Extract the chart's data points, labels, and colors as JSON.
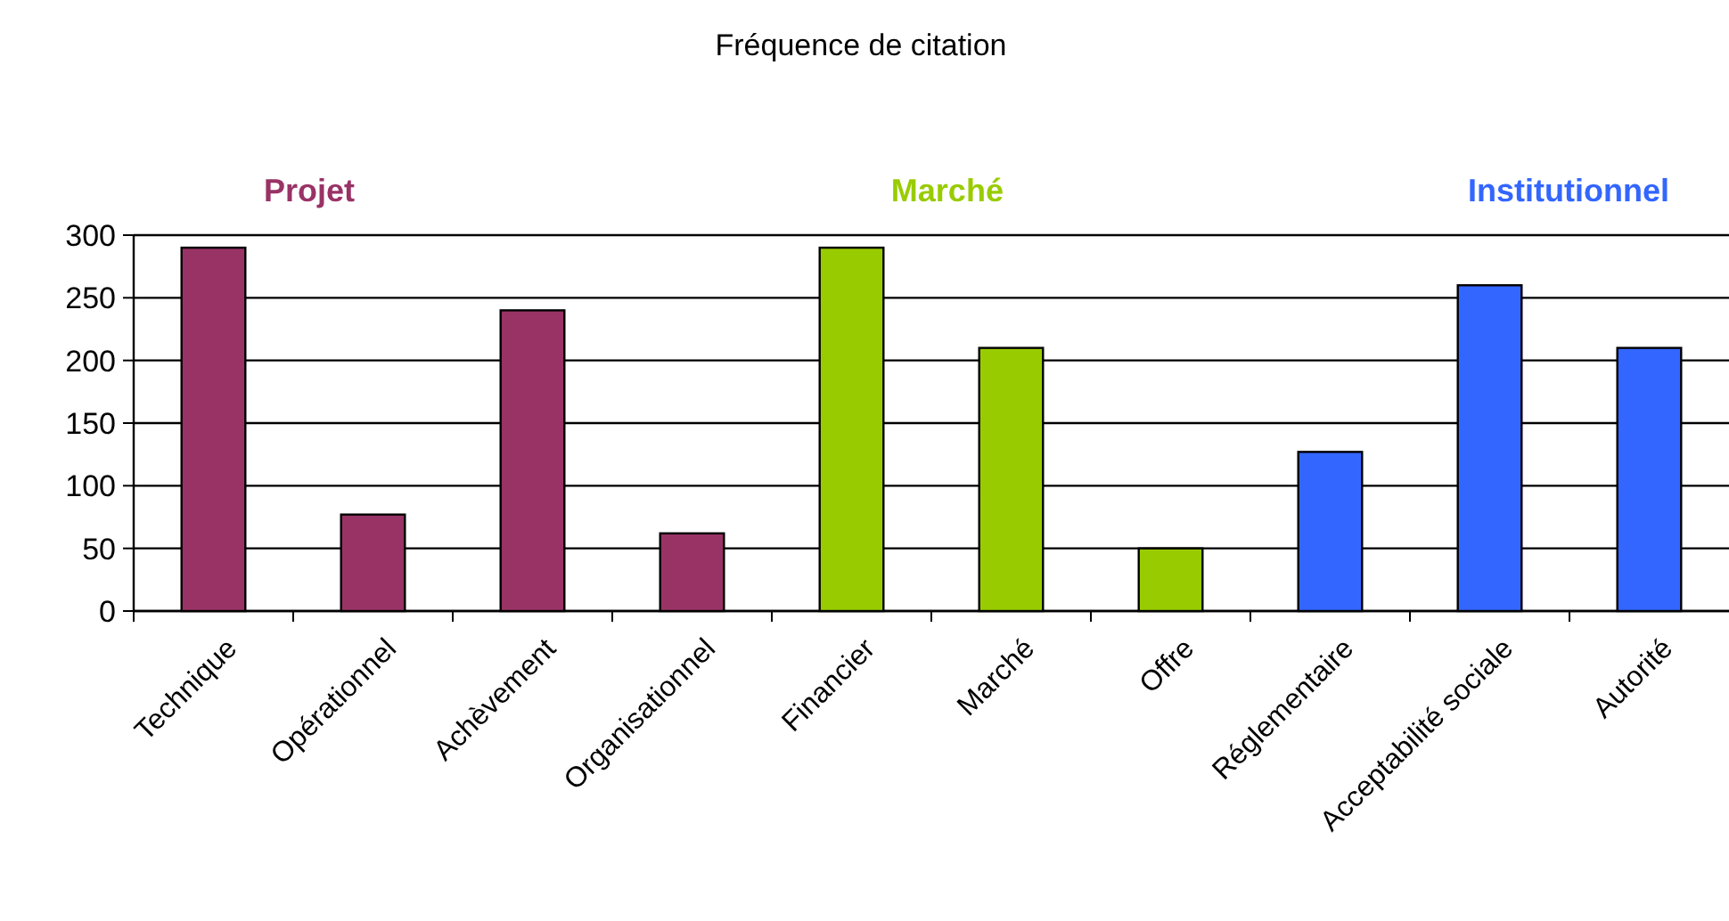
{
  "chart_data": {
    "type": "bar",
    "title": "Fréquence de citation",
    "categories": [
      "Technique",
      "Opérationnel",
      "Achèvement",
      "Organisationnel",
      "Financier",
      "Marché",
      "Offre",
      "Réglementaire",
      "Acceptabilité sociale",
      "Autorité"
    ],
    "values": [
      290,
      77,
      240,
      62,
      290,
      210,
      50,
      127,
      260,
      210
    ],
    "colors": [
      "#993366",
      "#993366",
      "#993366",
      "#993366",
      "#99cc00",
      "#99cc00",
      "#99cc00",
      "#3366ff",
      "#3366ff",
      "#3366ff"
    ],
    "annotations": [
      "Projet",
      "Marché",
      "Institutionnel"
    ],
    "ylim": [
      0,
      300
    ],
    "yticks": [
      0,
      50,
      100,
      150,
      200,
      250,
      300
    ],
    "grid": "y"
  }
}
